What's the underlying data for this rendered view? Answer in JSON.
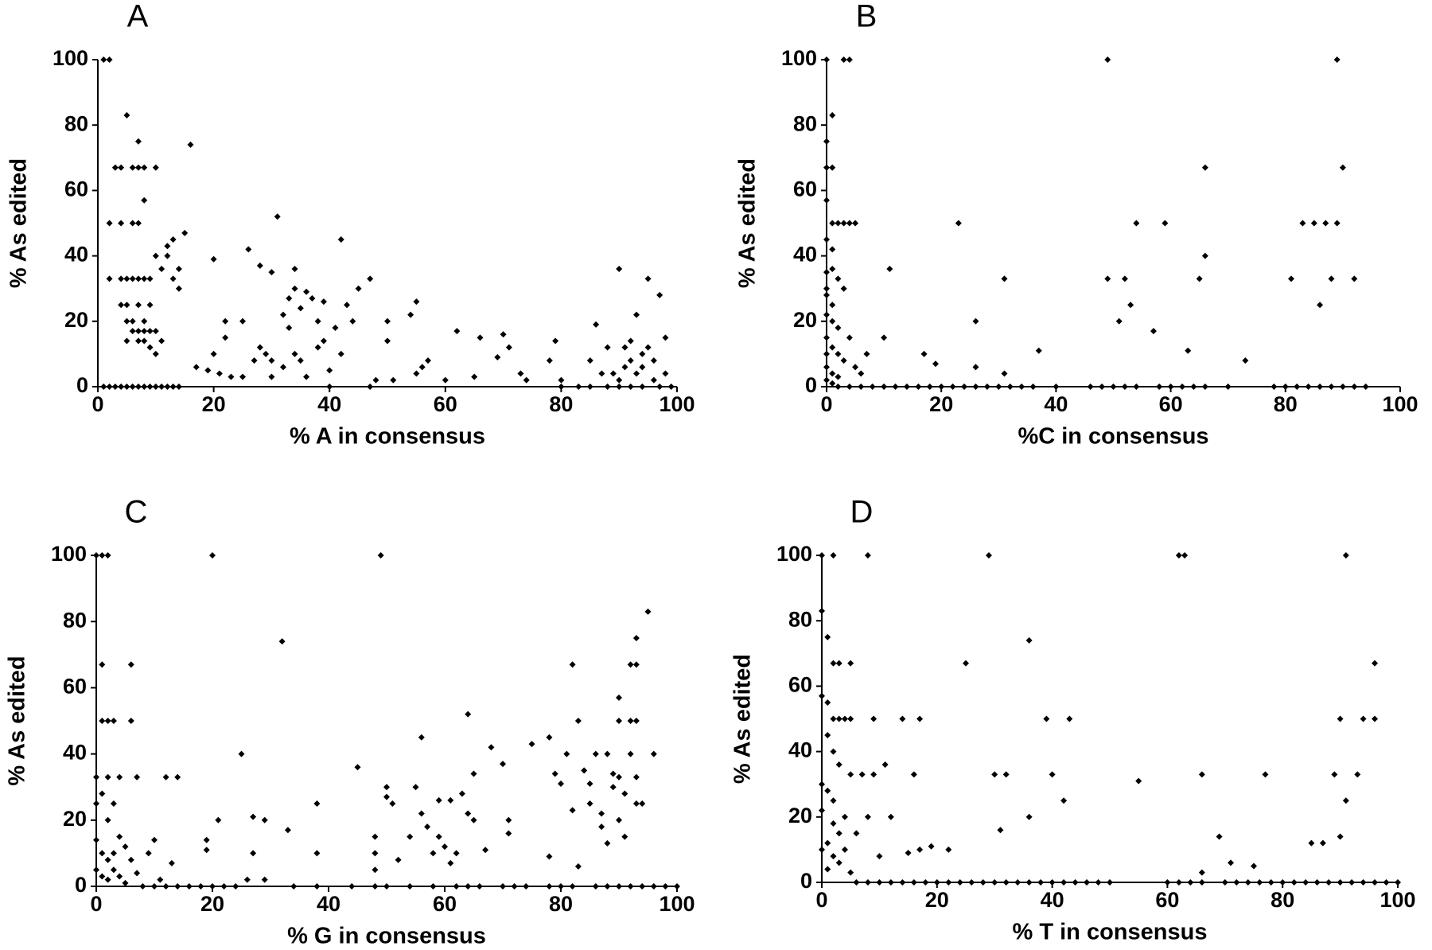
{
  "chart_data": [
    {
      "type": "scatter",
      "title": "A",
      "x_label": "% A in consensus",
      "y_label": "% As edited",
      "color": "#000000",
      "xlim": [
        0,
        100
      ],
      "ylim": [
        0,
        100
      ],
      "xticks": [
        0,
        20,
        40,
        60,
        80,
        100
      ],
      "yticks": [
        0,
        20,
        40,
        60,
        80,
        100
      ],
      "x": [
        1,
        2,
        2,
        2,
        1,
        2,
        3,
        4,
        5,
        6,
        7,
        8,
        9,
        10,
        11,
        12,
        13,
        14,
        3,
        4,
        4,
        4,
        4,
        5,
        5,
        5,
        5,
        5,
        6,
        6,
        6,
        6,
        6,
        7,
        7,
        7,
        7,
        7,
        7,
        7,
        8,
        8,
        8,
        8,
        8,
        8,
        9,
        9,
        9,
        9,
        10,
        10,
        10,
        10,
        11,
        11,
        12,
        12,
        13,
        13,
        14,
        14,
        15,
        16,
        17,
        19,
        20,
        20,
        21,
        22,
        22,
        23,
        25,
        25,
        26,
        27,
        28,
        28,
        29,
        30,
        30,
        30,
        31,
        32,
        32,
        33,
        33,
        34,
        34,
        34,
        35,
        35,
        36,
        36,
        37,
        38,
        38,
        39,
        39,
        40,
        40,
        41,
        42,
        42,
        43,
        44,
        45,
        47,
        47,
        48,
        50,
        50,
        51,
        54,
        55,
        55,
        56,
        57,
        60,
        62,
        65,
        66,
        69,
        70,
        71,
        73,
        74,
        78,
        79,
        80,
        80,
        83,
        85,
        85,
        86,
        87,
        88,
        89,
        90,
        90,
        91,
        91,
        92,
        92,
        93,
        93,
        94,
        94,
        94,
        95,
        95,
        96,
        96,
        97,
        97,
        98,
        98,
        99,
        88,
        90,
        92
      ],
      "values": [
        100,
        100,
        50,
        33,
        0,
        0,
        0,
        0,
        0,
        0,
        0,
        0,
        0,
        0,
        0,
        0,
        0,
        0,
        67,
        67,
        50,
        33,
        25,
        83,
        33,
        25,
        20,
        14,
        67,
        50,
        33,
        20,
        17,
        75,
        67,
        50,
        33,
        25,
        17,
        14,
        57,
        67,
        33,
        20,
        17,
        14,
        25,
        17,
        33,
        12,
        67,
        40,
        17,
        10,
        36,
        14,
        43,
        40,
        33,
        45,
        36,
        30,
        47,
        74,
        6,
        5,
        39,
        10,
        4,
        20,
        15,
        3,
        3,
        20,
        42,
        8,
        37,
        12,
        10,
        35,
        8,
        3,
        52,
        22,
        6,
        27,
        18,
        36,
        30,
        10,
        24,
        8,
        29,
        3,
        27,
        12,
        20,
        26,
        14,
        5,
        0,
        18,
        45,
        10,
        25,
        20,
        30,
        33,
        0,
        2,
        20,
        14,
        2,
        22,
        26,
        4,
        6,
        8,
        2,
        17,
        3,
        15,
        9,
        16,
        12,
        4,
        2,
        8,
        14,
        2,
        0,
        0,
        0,
        8,
        19,
        4,
        12,
        4,
        2,
        36,
        12,
        6,
        8,
        14,
        22,
        4,
        0,
        10,
        6,
        33,
        12,
        2,
        8,
        28,
        0,
        15,
        4,
        0,
        0,
        0,
        0
      ]
    },
    {
      "type": "scatter",
      "title": "B",
      "x_label": "%C in consensus",
      "y_label": "% As edited",
      "color": "#000000",
      "xlim": [
        0,
        100
      ],
      "ylim": [
        0,
        100
      ],
      "xticks": [
        0,
        20,
        40,
        60,
        80,
        100
      ],
      "yticks": [
        0,
        20,
        40,
        60,
        80,
        100
      ],
      "x": [
        0,
        3,
        4,
        49,
        89,
        0,
        0,
        1,
        1,
        0,
        1,
        2,
        3,
        4,
        5,
        0,
        1,
        0,
        1,
        2,
        3,
        0,
        0,
        1,
        0,
        1,
        2,
        0,
        1,
        0,
        2,
        3,
        0,
        1,
        2,
        0,
        1,
        4,
        5,
        6,
        7,
        10,
        11,
        17,
        19,
        23,
        26,
        26,
        31,
        31,
        37,
        49,
        51,
        52,
        53,
        54,
        57,
        59,
        63,
        65,
        66,
        66,
        73,
        81,
        83,
        85,
        86,
        87,
        88,
        89,
        90,
        92,
        2,
        4,
        6,
        8,
        10,
        12,
        14,
        16,
        18,
        20,
        22,
        24,
        26,
        28,
        30,
        32,
        34,
        36,
        40,
        46,
        48,
        50,
        52,
        54,
        58,
        60,
        62,
        64,
        66,
        70,
        78,
        80,
        82,
        84,
        86,
        88,
        90,
        92,
        94
      ],
      "values": [
        100,
        100,
        100,
        100,
        100,
        75,
        67,
        83,
        67,
        57,
        50,
        50,
        50,
        50,
        50,
        45,
        42,
        35,
        36,
        33,
        30,
        30,
        28,
        25,
        22,
        20,
        18,
        15,
        12,
        10,
        10,
        8,
        6,
        4,
        3,
        2,
        1,
        15,
        6,
        4,
        10,
        15,
        36,
        10,
        7,
        50,
        20,
        6,
        33,
        4,
        11,
        33,
        20,
        33,
        25,
        50,
        17,
        50,
        11,
        33,
        40,
        67,
        8,
        33,
        50,
        50,
        25,
        50,
        33,
        50,
        67,
        33,
        0,
        0,
        0,
        0,
        0,
        0,
        0,
        0,
        0,
        0,
        0,
        0,
        0,
        0,
        0,
        0,
        0,
        0,
        0,
        0,
        0,
        0,
        0,
        0,
        0,
        0,
        0,
        0,
        0,
        0,
        0,
        0,
        0,
        0,
        0,
        0,
        0,
        0,
        0
      ]
    },
    {
      "type": "scatter",
      "title": "C",
      "x_label": "% G in consensus",
      "y_label": "% As edited",
      "color": "#000000",
      "xlim": [
        0,
        100
      ],
      "ylim": [
        0,
        100
      ],
      "xticks": [
        0,
        20,
        40,
        60,
        80,
        100
      ],
      "yticks": [
        0,
        20,
        40,
        60,
        80,
        100
      ],
      "x": [
        0,
        1,
        2,
        20,
        49,
        32,
        95,
        93,
        1,
        6,
        92,
        93,
        82,
        1,
        2,
        3,
        6,
        90,
        92,
        93,
        90,
        0,
        2,
        4,
        7,
        12,
        14,
        90,
        93,
        0,
        1,
        2,
        3,
        4,
        0,
        1,
        2,
        3,
        4,
        5,
        6,
        1,
        2,
        0,
        3,
        5,
        7,
        9,
        10,
        11,
        13,
        19,
        21,
        19,
        25,
        27,
        26,
        27,
        29,
        29,
        33,
        38,
        38,
        45,
        48,
        48,
        48,
        50,
        50,
        51,
        52,
        54,
        55,
        56,
        56,
        57,
        58,
        59,
        59,
        60,
        61,
        61,
        62,
        63,
        64,
        64,
        65,
        65,
        67,
        68,
        70,
        71,
        71,
        75,
        78,
        78,
        79,
        80,
        81,
        82,
        83,
        83,
        84,
        85,
        85,
        86,
        87,
        87,
        88,
        88,
        89,
        89,
        90,
        91,
        91,
        92,
        93,
        94,
        96,
        8,
        10,
        12,
        14,
        16,
        18,
        20,
        22,
        24,
        34,
        38,
        44,
        48,
        50,
        54,
        58,
        62,
        64,
        66,
        70,
        72,
        74,
        78,
        80,
        82,
        86,
        88,
        90,
        92,
        94,
        96,
        98,
        100
      ],
      "values": [
        100,
        100,
        100,
        100,
        100,
        74,
        83,
        75,
        67,
        67,
        67,
        67,
        67,
        50,
        50,
        50,
        50,
        50,
        50,
        50,
        57,
        33,
        33,
        33,
        33,
        33,
        33,
        33,
        33,
        25,
        28,
        20,
        25,
        15,
        14,
        10,
        8,
        5,
        3,
        12,
        8,
        3,
        2,
        5,
        10,
        1,
        4,
        10,
        14,
        2,
        7,
        14,
        20,
        11,
        40,
        21,
        2,
        10,
        20,
        2,
        17,
        10,
        25,
        36,
        15,
        10,
        5,
        27,
        30,
        25,
        8,
        15,
        30,
        45,
        22,
        18,
        10,
        26,
        15,
        12,
        7,
        26,
        10,
        28,
        52,
        22,
        34,
        20,
        11,
        42,
        37,
        20,
        16,
        43,
        45,
        9,
        34,
        31,
        40,
        23,
        50,
        6,
        35,
        25,
        31,
        40,
        22,
        18,
        40,
        13,
        34,
        30,
        20,
        15,
        28,
        40,
        25,
        25,
        40,
        0,
        0,
        0,
        0,
        0,
        0,
        0,
        0,
        0,
        0,
        0,
        0,
        0,
        0,
        0,
        0,
        0,
        0,
        0,
        0,
        0,
        0,
        0,
        0,
        0,
        0,
        0,
        0,
        0,
        0,
        0,
        0,
        0
      ]
    },
    {
      "type": "scatter",
      "title": "D",
      "x_label": "% T in consensus",
      "y_label": "% As edited",
      "color": "#000000",
      "xlim": [
        0,
        100
      ],
      "ylim": [
        0,
        100
      ],
      "xticks": [
        0,
        20,
        40,
        60,
        80,
        100
      ],
      "yticks": [
        0,
        20,
        40,
        60,
        80,
        100
      ],
      "x": [
        0,
        2,
        8,
        29,
        62,
        63,
        91,
        0,
        1,
        2,
        3,
        5,
        25,
        96,
        0,
        1,
        2,
        3,
        4,
        5,
        9,
        14,
        17,
        39,
        43,
        90,
        94,
        96,
        36,
        1,
        2,
        3,
        5,
        7,
        9,
        11,
        16,
        30,
        32,
        40,
        66,
        77,
        93,
        0,
        1,
        2,
        0,
        2,
        3,
        4,
        1,
        0,
        2,
        3,
        1,
        4,
        5,
        6,
        8,
        10,
        12,
        15,
        17,
        19,
        22,
        31,
        36,
        42,
        55,
        66,
        69,
        71,
        75,
        85,
        87,
        89,
        90,
        91,
        6,
        8,
        10,
        12,
        14,
        16,
        18,
        20,
        22,
        24,
        26,
        28,
        30,
        32,
        34,
        36,
        38,
        40,
        42,
        44,
        46,
        48,
        50,
        60,
        62,
        64,
        66,
        70,
        72,
        74,
        76,
        78,
        80,
        82,
        84,
        86,
        88,
        90,
        92,
        94,
        96,
        98,
        100
      ],
      "values": [
        100,
        100,
        100,
        100,
        100,
        100,
        100,
        83,
        75,
        67,
        67,
        67,
        67,
        67,
        57,
        55,
        50,
        50,
        50,
        50,
        50,
        50,
        50,
        50,
        50,
        50,
        50,
        50,
        74,
        45,
        40,
        36,
        33,
        33,
        33,
        36,
        33,
        33,
        33,
        33,
        33,
        33,
        33,
        30,
        28,
        25,
        22,
        18,
        15,
        20,
        12,
        10,
        8,
        6,
        4,
        10,
        3,
        15,
        20,
        8,
        20,
        9,
        10,
        11,
        10,
        16,
        20,
        25,
        31,
        3,
        14,
        6,
        5,
        12,
        12,
        33,
        14,
        25,
        0,
        0,
        0,
        0,
        0,
        0,
        0,
        0,
        0,
        0,
        0,
        0,
        0,
        0,
        0,
        0,
        0,
        0,
        0,
        0,
        0,
        0,
        0,
        0,
        0,
        0,
        0,
        0,
        0,
        0,
        0,
        0,
        0,
        0,
        0,
        0,
        0,
        0,
        0,
        0,
        0,
        0,
        0
      ]
    }
  ]
}
